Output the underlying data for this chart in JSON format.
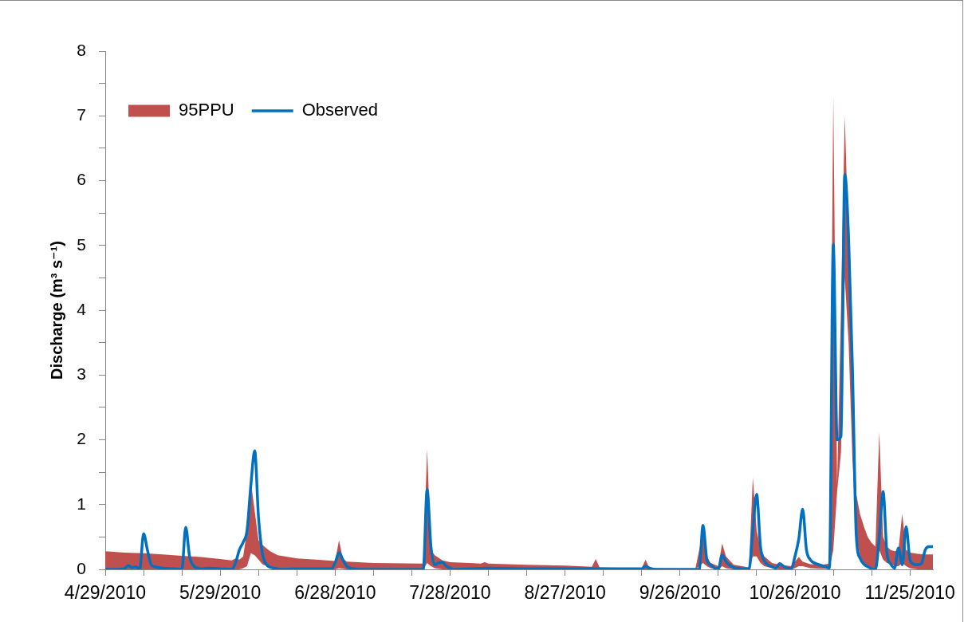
{
  "chart_data": {
    "type": "line",
    "ylabel": "Discharge (m³ s⁻¹)",
    "xlim": [
      "2010-04-29",
      "2010-12-01"
    ],
    "xticks": [
      {
        "value": "2010-04-29",
        "label": "4/29/2010"
      },
      {
        "value": "2010-05-09",
        "label": null
      },
      {
        "value": "2010-05-19",
        "label": null
      },
      {
        "value": "2010-05-29",
        "label": "5/29/2010"
      },
      {
        "value": "2010-06-08",
        "label": null
      },
      {
        "value": "2010-06-18",
        "label": null
      },
      {
        "value": "2010-06-28",
        "label": "6/28/2010"
      },
      {
        "value": "2010-07-08",
        "label": null
      },
      {
        "value": "2010-07-18",
        "label": null
      },
      {
        "value": "2010-07-28",
        "label": "7/28/2010"
      },
      {
        "value": "2010-08-07",
        "label": null
      },
      {
        "value": "2010-08-17",
        "label": null
      },
      {
        "value": "2010-08-27",
        "label": "8/27/2010"
      },
      {
        "value": "2010-09-06",
        "label": null
      },
      {
        "value": "2010-09-16",
        "label": null
      },
      {
        "value": "2010-09-26",
        "label": "9/26/2010"
      },
      {
        "value": "2010-10-06",
        "label": null
      },
      {
        "value": "2010-10-16",
        "label": null
      },
      {
        "value": "2010-10-26",
        "label": "10/26/2010"
      },
      {
        "value": "2010-11-05",
        "label": null
      },
      {
        "value": "2010-11-15",
        "label": null
      },
      {
        "value": "2010-11-25",
        "label": "11/25/2010"
      }
    ],
    "ylim": [
      0,
      8
    ],
    "yticks": [
      0,
      {
        "value": 0.5,
        "label": null
      },
      1,
      {
        "value": 1.5,
        "label": null
      },
      2,
      {
        "value": 2.5,
        "label": null
      },
      3,
      {
        "value": 3.5,
        "label": null
      },
      4,
      {
        "value": 4.5,
        "label": null
      },
      5,
      {
        "value": 5.5,
        "label": null
      },
      6,
      {
        "value": 6.5,
        "label": null
      },
      7,
      {
        "value": 7.5,
        "label": null
      },
      8
    ],
    "legend": "top left",
    "series": [
      {
        "name": "95PPU",
        "type": "area",
        "color": "#c0504d",
        "x": [
          "2010-04-29",
          "2010-05-04",
          "2010-05-09",
          "2010-05-14",
          "2010-05-19",
          "2010-05-24",
          "2010-05-29",
          "2010-06-01",
          "2010-06-02",
          "2010-06-03",
          "2010-06-04",
          "2010-06-05",
          "2010-06-06",
          "2010-06-07",
          "2010-06-08",
          "2010-06-09",
          "2010-06-11",
          "2010-06-13",
          "2010-06-18",
          "2010-06-23",
          "2010-06-28",
          "2010-06-29",
          "2010-06-30",
          "2010-07-01",
          "2010-07-08",
          "2010-07-21",
          "2010-07-22",
          "2010-07-23",
          "2010-07-24",
          "2010-07-26",
          "2010-07-28",
          "2010-08-02",
          "2010-08-05",
          "2010-08-06",
          "2010-08-07",
          "2010-08-17",
          "2010-08-27",
          "2010-09-03",
          "2010-09-04",
          "2010-09-05",
          "2010-09-16",
          "2010-09-17",
          "2010-09-18",
          "2010-09-30",
          "2010-10-01",
          "2010-10-02",
          "2010-10-03",
          "2010-10-04",
          "2010-10-06",
          "2010-10-07",
          "2010-10-08",
          "2010-10-10",
          "2010-10-14",
          "2010-10-15",
          "2010-10-16",
          "2010-10-17",
          "2010-10-18",
          "2010-10-20",
          "2010-10-22",
          "2010-10-25",
          "2010-10-26",
          "2010-10-27",
          "2010-10-28",
          "2010-10-30",
          "2010-11-02",
          "2010-11-04",
          "2010-11-05",
          "2010-11-06",
          "2010-11-07",
          "2010-11-08",
          "2010-11-09",
          "2010-11-10",
          "2010-11-11",
          "2010-11-12",
          "2010-11-13",
          "2010-11-14",
          "2010-11-15",
          "2010-11-16",
          "2010-11-17",
          "2010-11-18",
          "2010-11-19",
          "2010-11-20",
          "2010-11-21",
          "2010-11-22",
          "2010-11-23",
          "2010-11-24",
          "2010-11-25",
          "2010-11-27",
          "2010-11-29",
          "2010-12-01"
        ],
        "values": [
          null,
          null,
          null,
          null,
          null,
          null,
          null,
          null,
          null,
          null,
          null,
          null,
          null,
          null,
          null,
          null,
          null,
          null,
          null,
          null,
          null,
          null,
          null,
          null,
          null,
          null,
          null,
          null,
          null,
          null,
          null,
          null,
          null,
          null,
          null,
          null,
          null,
          null,
          null,
          null,
          null,
          null,
          null,
          null,
          null,
          null,
          null,
          null,
          null,
          null,
          null,
          null,
          null,
          null,
          null,
          null,
          null,
          null,
          null,
          null,
          null,
          null,
          null,
          null,
          null,
          null,
          null,
          null,
          null,
          null,
          null,
          null,
          null,
          null,
          null,
          null,
          null,
          null,
          null,
          null,
          null,
          null,
          null,
          null,
          null,
          null,
          null,
          null,
          null,
          null
        ],
        "lower": [
          0,
          0,
          0,
          0,
          0,
          0,
          0,
          0,
          0,
          0,
          0.02,
          0.05,
          0.25,
          0.22,
          0.15,
          0.08,
          0.03,
          0.01,
          0,
          0,
          0,
          0.02,
          0.01,
          0,
          0,
          0,
          0.1,
          0.05,
          0.02,
          0,
          0,
          0,
          0,
          0,
          0,
          0,
          0,
          0,
          0,
          0,
          0,
          0,
          0,
          0,
          0.05,
          0.1,
          0.05,
          0.02,
          0,
          0.05,
          0.02,
          0,
          0,
          0.2,
          0.2,
          0.1,
          0.05,
          0.02,
          0,
          0,
          0.02,
          0.05,
          0.05,
          0.02,
          0.01,
          0.01,
          0.3,
          1.2,
          1.8,
          4.5,
          3.5,
          1.7,
          0.5,
          0.2,
          0.1,
          0.05,
          0.03,
          0.02,
          0.3,
          0.15,
          0.1,
          0.08,
          0.05,
          0.05,
          0.1,
          0.05,
          0.02,
          0,
          0,
          0
        ],
        "upper": [
          0.28,
          0.26,
          0.25,
          0.23,
          0.21,
          0.19,
          0.16,
          0.14,
          0.17,
          0.15,
          0.2,
          0.6,
          1.36,
          0.9,
          0.45,
          0.38,
          0.28,
          0.22,
          0.17,
          0.15,
          0.13,
          0.45,
          0.17,
          0.12,
          0.1,
          0.09,
          1.86,
          0.3,
          0.22,
          0.14,
          0.11,
          0.1,
          0.09,
          0.11,
          0.09,
          0.07,
          0.06,
          0.04,
          0.16,
          0.03,
          0.02,
          0.15,
          0.02,
          0.01,
          0.3,
          0.58,
          0.2,
          0.1,
          0.05,
          0.4,
          0.2,
          0.07,
          0.03,
          1.42,
          0.6,
          0.32,
          0.2,
          0.1,
          0.07,
          0.05,
          0.12,
          0.19,
          0.12,
          0.08,
          0.07,
          0.09,
          7.3,
          1.3,
          4.0,
          7.0,
          5.0,
          2.5,
          1.16,
          0.85,
          0.66,
          0.5,
          0.41,
          0.35,
          2.12,
          0.5,
          0.35,
          0.3,
          0.28,
          0.3,
          0.86,
          0.3,
          0.26,
          0.24,
          0.23,
          0.23
        ]
      },
      {
        "name": "Observed",
        "type": "line",
        "color": "#0070c0",
        "x": [
          "2010-04-29",
          "2010-05-02",
          "2010-05-04",
          "2010-05-05",
          "2010-05-06",
          "2010-05-07",
          "2010-05-08",
          "2010-05-09",
          "2010-05-10",
          "2010-05-11",
          "2010-05-12",
          "2010-05-14",
          "2010-05-17",
          "2010-05-19",
          "2010-05-20",
          "2010-05-21",
          "2010-05-22",
          "2010-05-24",
          "2010-05-26",
          "2010-05-29",
          "2010-06-01",
          "2010-06-02",
          "2010-06-03",
          "2010-06-04",
          "2010-06-05",
          "2010-06-06",
          "2010-06-07",
          "2010-06-08",
          "2010-06-09",
          "2010-06-10",
          "2010-06-12",
          "2010-06-15",
          "2010-06-18",
          "2010-06-23",
          "2010-06-27",
          "2010-06-28",
          "2010-06-29",
          "2010-06-30",
          "2010-07-01",
          "2010-07-03",
          "2010-07-06",
          "2010-07-13",
          "2010-07-21",
          "2010-07-22",
          "2010-07-23",
          "2010-07-24",
          "2010-07-25",
          "2010-07-26",
          "2010-07-27",
          "2010-07-28",
          "2010-07-29",
          "2010-08-02",
          "2010-08-07",
          "2010-08-17",
          "2010-08-27",
          "2010-09-06",
          "2010-09-16",
          "2010-09-17",
          "2010-09-18",
          "2010-09-20",
          "2010-09-26",
          "2010-10-01",
          "2010-10-02",
          "2010-10-03",
          "2010-10-04",
          "2010-10-05",
          "2010-10-06",
          "2010-10-07",
          "2010-10-08",
          "2010-10-09",
          "2010-10-10",
          "2010-10-12",
          "2010-10-14",
          "2010-10-15",
          "2010-10-16",
          "2010-10-17",
          "2010-10-18",
          "2010-10-19",
          "2010-10-20",
          "2010-10-21",
          "2010-10-22",
          "2010-10-23",
          "2010-10-24",
          "2010-10-25",
          "2010-10-26",
          "2010-10-27",
          "2010-10-28",
          "2010-10-29",
          "2010-10-30",
          "2010-10-31",
          "2010-11-02",
          "2010-11-04",
          "2010-11-05",
          "2010-11-06",
          "2010-11-07",
          "2010-11-08",
          "2010-11-09",
          "2010-11-10",
          "2010-11-11",
          "2010-11-12",
          "2010-11-13",
          "2010-11-14",
          "2010-11-16",
          "2010-11-17",
          "2010-11-18",
          "2010-11-19",
          "2010-11-20",
          "2010-11-21",
          "2010-11-22",
          "2010-11-23",
          "2010-11-24",
          "2010-11-25",
          "2010-11-26",
          "2010-11-27",
          "2010-11-28",
          "2010-11-29",
          "2010-11-30",
          "2010-12-01"
        ],
        "values": [
          0,
          0,
          0.01,
          0.06,
          0.03,
          0.04,
          0,
          0.55,
          0.3,
          0.07,
          0.04,
          0.02,
          0.01,
          0,
          0.65,
          0.2,
          0.06,
          0.01,
          0.02,
          0.01,
          0,
          0.1,
          0.3,
          0.42,
          0.6,
          1.3,
          1.83,
          0.8,
          0.25,
          0.08,
          0.02,
          0,
          0.01,
          0.01,
          0.01,
          0.1,
          0.26,
          0.15,
          0.05,
          0.01,
          0,
          0,
          0,
          1.23,
          0.35,
          0.07,
          0.1,
          0.11,
          0.05,
          0.02,
          0,
          0.01,
          0.02,
          0.01,
          0.01,
          0.01,
          0.01,
          0.05,
          0.02,
          0,
          0,
          0,
          0.68,
          0.15,
          0.07,
          0.02,
          0.01,
          0.22,
          0.12,
          0.06,
          0.03,
          0.01,
          0,
          0.6,
          1.16,
          0.35,
          0.13,
          0.07,
          0.04,
          0.02,
          0.09,
          0.05,
          0.02,
          0.01,
          0.2,
          0.47,
          0.93,
          0.3,
          0.15,
          0.1,
          0.06,
          0.02,
          5.02,
          2.0,
          2.05,
          6.1,
          5.1,
          3.1,
          0.52,
          0.17,
          0.08,
          0.04,
          0,
          0.5,
          1.2,
          0.25,
          0.08,
          0.02,
          0.33,
          0.07,
          0.66,
          0.15,
          0.08,
          0.07,
          0.09,
          0.3,
          0.35,
          0.35
        ]
      }
    ]
  }
}
